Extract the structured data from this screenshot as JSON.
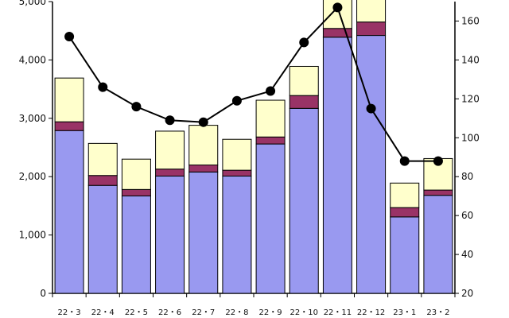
{
  "chart_data": {
    "type": "bar",
    "stacked": true,
    "title": "",
    "xlabel": "",
    "ylabel": "",
    "categories": [
      "22・3",
      "22・4",
      "22・5",
      "22・6",
      "22・7",
      "22・8",
      "22・9",
      "22・10",
      "22・11",
      "22・12",
      "23・1",
      "23・2"
    ],
    "ylim": [
      0,
      5000
    ],
    "y_ticks": [
      "0",
      "1,000",
      "2,000",
      "3,000",
      "4,000",
      "5,000"
    ],
    "y2lim": [
      20,
      170
    ],
    "y2_ticks": [
      "20",
      "40",
      "60",
      "80",
      "100",
      "120",
      "140",
      "160"
    ],
    "series": [
      {
        "kind": "bar",
        "axis": "left",
        "color": "#9999f0",
        "values": [
          2790,
          1850,
          1670,
          2010,
          2080,
          2010,
          2560,
          3170,
          4390,
          4420,
          1310,
          1680
        ]
      },
      {
        "kind": "bar",
        "axis": "left",
        "color": "#993366",
        "values": [
          150,
          170,
          110,
          120,
          120,
          100,
          120,
          220,
          150,
          230,
          160,
          90
        ]
      },
      {
        "kind": "bar",
        "axis": "left",
        "color": "#ffffcc",
        "values": [
          750,
          550,
          520,
          650,
          680,
          530,
          630,
          500,
          520,
          460,
          420,
          540
        ]
      },
      {
        "kind": "line",
        "axis": "right",
        "color": "#000000",
        "values": [
          152,
          126,
          116,
          109,
          108,
          119,
          124,
          149,
          167,
          115,
          88,
          88
        ]
      }
    ],
    "grid": false,
    "legend": "none"
  }
}
